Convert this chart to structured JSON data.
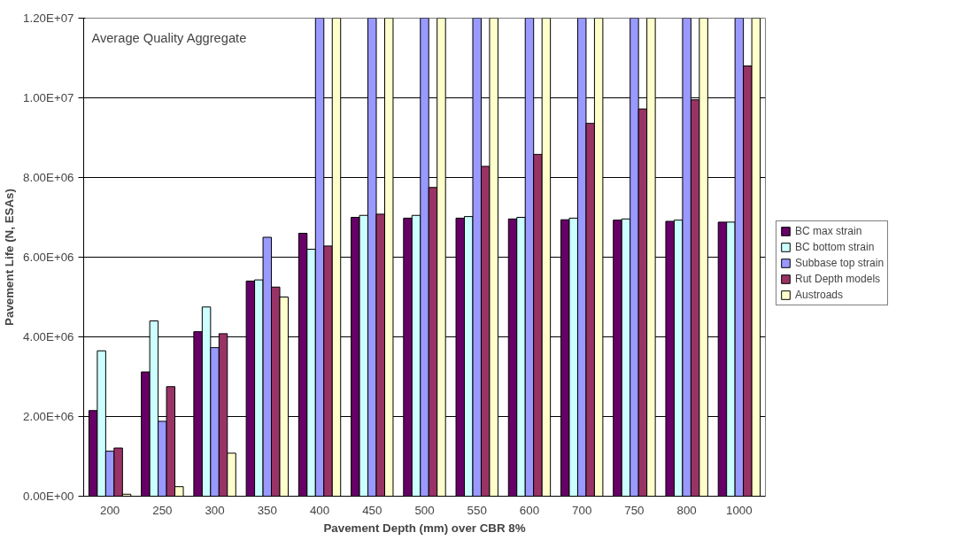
{
  "chart_data": {
    "type": "bar",
    "title": "Average Quality Aggregate",
    "xlabel": "Pavement Depth (mm) over CBR 8%",
    "ylabel": "Pavement Life (N, ESAs)",
    "categories": [
      "200",
      "250",
      "300",
      "350",
      "400",
      "450",
      "500",
      "550",
      "600",
      "700",
      "750",
      "800",
      "1000"
    ],
    "series": [
      {
        "name": "BC max strain",
        "color": "#660066",
        "values": [
          2150000,
          3120000,
          4130000,
          5400000,
          6600000,
          7000000,
          6980000,
          6980000,
          6960000,
          6940000,
          6930000,
          6900000,
          6880000
        ]
      },
      {
        "name": "BC bottom strain",
        "color": "#ccffff",
        "values": [
          3650000,
          4400000,
          4750000,
          5430000,
          6200000,
          7050000,
          7050000,
          7020000,
          7000000,
          6980000,
          6960000,
          6930000,
          6880000
        ]
      },
      {
        "name": "Subbase top strain",
        "color": "#9999ff",
        "values": [
          1130000,
          1880000,
          3730000,
          6500000,
          12000000,
          12000000,
          12000000,
          12000000,
          12000000,
          12000000,
          12000000,
          12000000,
          12000000
        ]
      },
      {
        "name": "Rut Depth models",
        "color": "#993366",
        "values": [
          1210000,
          2750000,
          4080000,
          5250000,
          6280000,
          7080000,
          7750000,
          8280000,
          8580000,
          9360000,
          9720000,
          9950000,
          10800000
        ]
      },
      {
        "name": "Austroads",
        "color": "#ffffcc",
        "values": [
          50000,
          240000,
          1080000,
          5000000,
          12000000,
          12000000,
          12000000,
          12000000,
          12000000,
          12000000,
          12000000,
          12000000,
          12000000
        ]
      }
    ],
    "ylim": [
      0,
      12000000
    ],
    "yticks": [
      {
        "value": 0,
        "label": "0.00E+00"
      },
      {
        "value": 2000000,
        "label": "2.00E+06"
      },
      {
        "value": 4000000,
        "label": "4.00E+06"
      },
      {
        "value": 6000000,
        "label": "6.00E+06"
      },
      {
        "value": 8000000,
        "label": "8.00E+06"
      },
      {
        "value": 10000000,
        "label": "1.00E+07"
      },
      {
        "value": 12000000,
        "label": "1.20E+07"
      }
    ],
    "grid": "y",
    "legend": "right"
  }
}
